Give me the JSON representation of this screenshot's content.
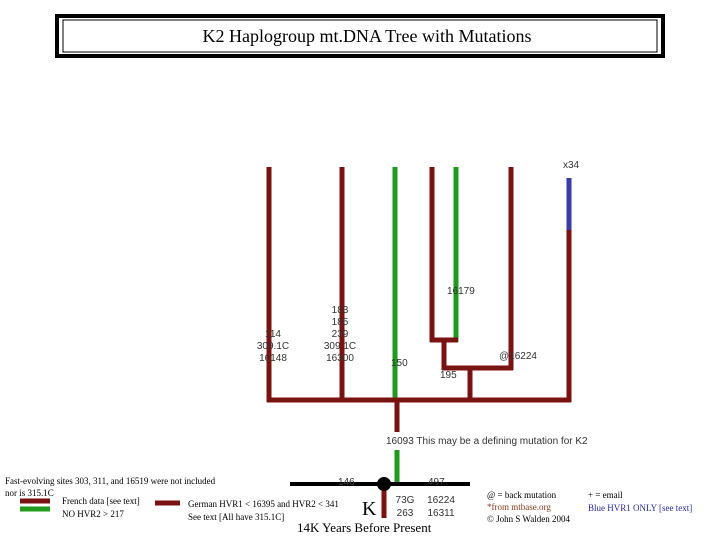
{
  "header": {
    "title": "K2 Haplogroup mt.DNA Tree with Mutations"
  },
  "tree": {
    "x34": "x34",
    "m16179": "16179",
    "branch1": [
      "114",
      "309.1C",
      "16148"
    ],
    "branch2": [
      "183",
      "185",
      "239",
      "309.1C",
      "16300"
    ],
    "m150": "150",
    "m16224back": "@16224",
    "m195": "195",
    "m16093": "16093 This may be a defining mutation for K2",
    "m146": "146",
    "m497": "497",
    "k_label": "K",
    "k_mut1": [
      "73G",
      "263"
    ],
    "k_mut2": [
      "16224",
      "16311"
    ],
    "timeline": "14K Years Before Present"
  },
  "notes": {
    "fast_evolving": [
      "Fast-evolving sites 303, 311, and 16519 were not included",
      "nor is 315.1C"
    ],
    "french": [
      "French data [see text]",
      "NO HVR2 > 217"
    ],
    "german": [
      "German HVR1 < 16395 and HVR2 < 341",
      "See text [All have 315.1C]"
    ],
    "back": [
      "@ = back mutation",
      "*from mtbase.org",
      "© John S Walden 2004"
    ],
    "email": [
      "+ = email",
      "Blue HVR1 ONLY [see text]"
    ]
  }
}
